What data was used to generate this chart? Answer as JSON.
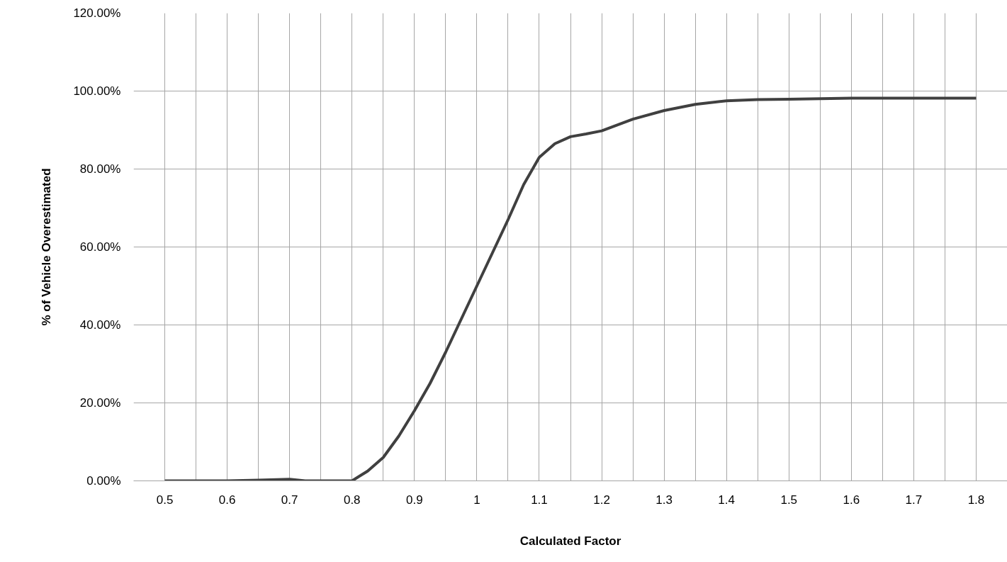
{
  "chart_data": {
    "type": "line",
    "xlabel": "Calculated Factor",
    "ylabel": "% of Vehicle Overestimated",
    "x": [
      0.5,
      0.6,
      0.65,
      0.7,
      0.725,
      0.75,
      0.775,
      0.8,
      0.825,
      0.85,
      0.875,
      0.9,
      0.925,
      0.95,
      0.975,
      1.0,
      1.025,
      1.05,
      1.075,
      1.1,
      1.125,
      1.15,
      1.175,
      1.2,
      1.25,
      1.3,
      1.35,
      1.4,
      1.45,
      1.5,
      1.6,
      1.7,
      1.8
    ],
    "series": [
      {
        "color": "#404040",
        "values": [
          0,
          0,
          0.2,
          0.4,
          0,
          0,
          0,
          0,
          2.5,
          6,
          11.5,
          18,
          25,
          33,
          41.5,
          50,
          58.5,
          67,
          76,
          83,
          86.5,
          88.3,
          89,
          89.8,
          92.8,
          95,
          96.6,
          97.5,
          97.8,
          97.9,
          98.2,
          98.2,
          98.2
        ]
      }
    ],
    "xlim": [
      0.45,
      1.85
    ],
    "xticks": [
      0.5,
      0.6,
      0.7,
      0.8,
      0.9,
      1,
      1.1,
      1.2,
      1.3,
      1.4,
      1.5,
      1.6,
      1.7,
      1.8
    ],
    "ylim": [
      0,
      120
    ],
    "yticks": [
      {
        "value": 0,
        "label": "0.00%"
      },
      {
        "value": 20,
        "label": "20.00%"
      },
      {
        "value": 40,
        "label": "40.00%"
      },
      {
        "value": 60,
        "label": "60.00%"
      },
      {
        "value": 80,
        "label": "80.00%"
      },
      {
        "value": 100,
        "label": "100.00%"
      },
      {
        "value": 120,
        "label": "120.00%"
      }
    ],
    "grid": true,
    "marker": "none",
    "line_style": "solid"
  }
}
